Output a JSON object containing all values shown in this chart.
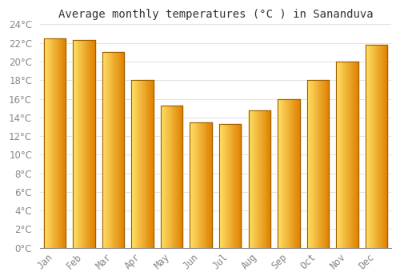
{
  "title": "Average monthly temperatures (°C ) in Sananduva",
  "months": [
    "Jan",
    "Feb",
    "Mar",
    "Apr",
    "May",
    "Jun",
    "Jul",
    "Aug",
    "Sep",
    "Oct",
    "Nov",
    "Dec"
  ],
  "values": [
    22.5,
    22.3,
    21.0,
    18.0,
    15.3,
    13.5,
    13.3,
    14.8,
    16.0,
    18.0,
    20.0,
    21.8
  ],
  "bar_color_left": "#FFD54F",
  "bar_color_right": "#E65C00",
  "bar_color_mid": "#FFA726",
  "bar_edge_color": "#888800",
  "background_color": "#FFFFFF",
  "plot_bg_color": "#FFFFFF",
  "grid_color": "#DDDDDD",
  "ylim": [
    0,
    24
  ],
  "yticks": [
    0,
    2,
    4,
    6,
    8,
    10,
    12,
    14,
    16,
    18,
    20,
    22,
    24
  ],
  "title_fontsize": 10,
  "tick_fontsize": 8.5,
  "tick_color": "#888888"
}
